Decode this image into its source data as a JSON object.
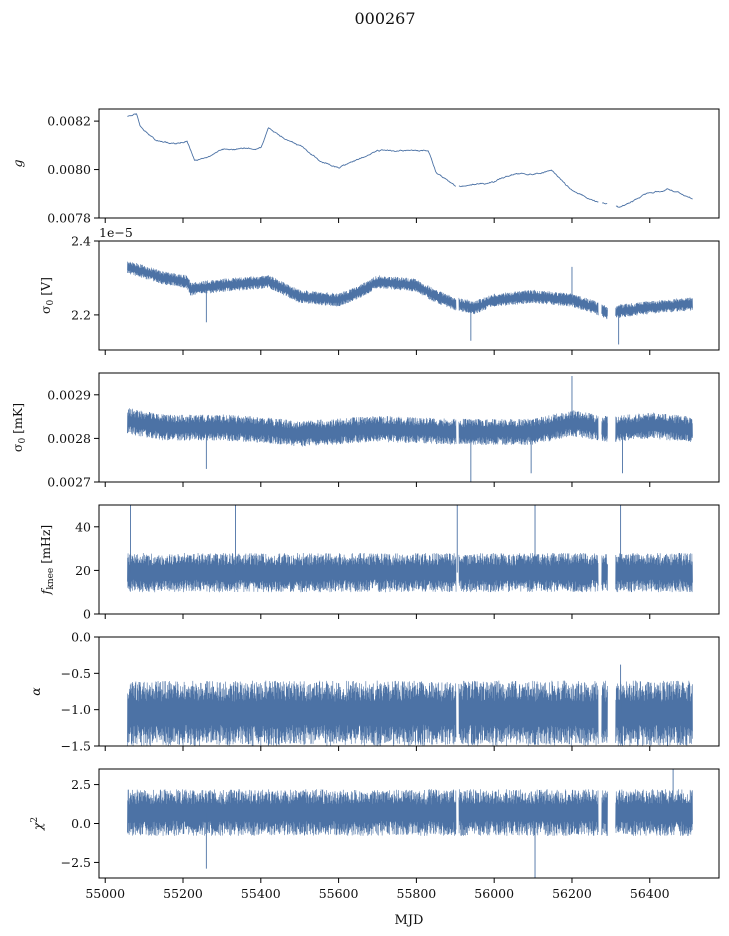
{
  "title": "000267",
  "xlabel": "MJD",
  "line_color": "#4c72a5",
  "chart_data": [
    {
      "type": "line",
      "ylabel": "g",
      "ylabel_sub": "",
      "ylabel_unit": "",
      "italic": true,
      "ylim": [
        0.0078,
        0.00825
      ],
      "yticks": [
        0.0078,
        0.008,
        0.0082
      ],
      "yticklabels": [
        "0.0078",
        "0.0080",
        "0.0082"
      ],
      "style": "line",
      "noise": 4e-06,
      "trend": [
        [
          55057,
          0.00822
        ],
        [
          55080,
          0.00823
        ],
        [
          55090,
          0.00818
        ],
        [
          55110,
          0.00815
        ],
        [
          55130,
          0.00812
        ],
        [
          55180,
          0.00811
        ],
        [
          55210,
          0.00812
        ],
        [
          55230,
          0.00804
        ],
        [
          55260,
          0.00804
        ],
        [
          55300,
          0.00808
        ],
        [
          55400,
          0.00809
        ],
        [
          55420,
          0.00817
        ],
        [
          55450,
          0.00814
        ],
        [
          55500,
          0.0081
        ],
        [
          55550,
          0.00804
        ],
        [
          55600,
          0.00801
        ],
        [
          55650,
          0.00804
        ],
        [
          55700,
          0.00808
        ],
        [
          55830,
          0.00808
        ],
        [
          55850,
          0.00799
        ],
        [
          55900,
          0.00793
        ],
        [
          56000,
          0.00795
        ],
        [
          56050,
          0.00798
        ],
        [
          56150,
          0.00799
        ],
        [
          56200,
          0.00791
        ],
        [
          56260,
          0.00787
        ],
        [
          56320,
          0.00784
        ],
        [
          56400,
          0.0079
        ],
        [
          56450,
          0.00792
        ],
        [
          56510,
          0.00788
        ]
      ],
      "spikes": []
    },
    {
      "type": "line",
      "ylabel": "σ",
      "ylabel_sub": "0",
      "ylabel_unit": " [V]",
      "italic": false,
      "ylim": [
        2.105,
        2.4
      ],
      "offset_text": "1e−5",
      "yticks": [
        2.2,
        2.4
      ],
      "yticklabels": [
        "2.2",
        "2.4"
      ],
      "style": "band",
      "noise": 0.018,
      "trend": [
        [
          55057,
          2.33
        ],
        [
          55150,
          2.3
        ],
        [
          55210,
          2.29
        ],
        [
          55220,
          2.27
        ],
        [
          55300,
          2.28
        ],
        [
          55420,
          2.29
        ],
        [
          55500,
          2.25
        ],
        [
          55600,
          2.24
        ],
        [
          55650,
          2.26
        ],
        [
          55700,
          2.29
        ],
        [
          55800,
          2.28
        ],
        [
          55850,
          2.25
        ],
        [
          55900,
          2.23
        ],
        [
          55950,
          2.22
        ],
        [
          56000,
          2.24
        ],
        [
          56100,
          2.25
        ],
        [
          56200,
          2.24
        ],
        [
          56260,
          2.22
        ],
        [
          56300,
          2.2
        ],
        [
          56320,
          2.21
        ],
        [
          56400,
          2.22
        ],
        [
          56510,
          2.23
        ]
      ],
      "spikes": [
        [
          56200,
          2.33
        ],
        [
          55940,
          2.13
        ],
        [
          56320,
          2.12
        ],
        [
          55260,
          2.18
        ]
      ]
    },
    {
      "type": "line",
      "ylabel": "σ",
      "ylabel_sub": "0",
      "ylabel_unit": " [mK]",
      "italic": false,
      "ylim": [
        0.0027,
        0.00295
      ],
      "yticks": [
        0.0027,
        0.0028,
        0.0029
      ],
      "yticklabels": [
        "0.0027",
        "0.0028",
        "0.0029"
      ],
      "style": "band",
      "noise": 3e-05,
      "trend": [
        [
          55057,
          0.00284
        ],
        [
          55150,
          0.002825
        ],
        [
          55300,
          0.002825
        ],
        [
          55400,
          0.00282
        ],
        [
          55500,
          0.00281
        ],
        [
          55700,
          0.002822
        ],
        [
          55900,
          0.002815
        ],
        [
          56100,
          0.002815
        ],
        [
          56200,
          0.002835
        ],
        [
          56300,
          0.00282
        ],
        [
          56400,
          0.00283
        ],
        [
          56510,
          0.00282
        ]
      ],
      "spikes": [
        [
          56200,
          0.002943
        ],
        [
          55940,
          0.0027
        ],
        [
          56095,
          0.00272
        ],
        [
          56330,
          0.00272
        ],
        [
          55260,
          0.00273
        ]
      ]
    },
    {
      "type": "line",
      "ylabel": "f",
      "ylabel_sub": "knee",
      "ylabel_unit": " [mHz]",
      "italic": true,
      "ylim": [
        0,
        50
      ],
      "yticks": [
        0,
        20,
        40
      ],
      "yticklabels": [
        "0",
        "20",
        "40"
      ],
      "style": "band",
      "noise": 9,
      "trend": [
        [
          55057,
          19
        ],
        [
          56510,
          19
        ]
      ],
      "spikes": [
        [
          55065,
          50
        ],
        [
          55335,
          50
        ],
        [
          55905,
          50
        ],
        [
          56105,
          50
        ],
        [
          56325,
          50
        ]
      ]
    },
    {
      "type": "line",
      "ylabel": "α",
      "ylabel_sub": "",
      "ylabel_unit": "",
      "italic": true,
      "ylim": [
        -1.5,
        0
      ],
      "yticks": [
        -1.5,
        -1.0,
        -0.5,
        0.0
      ],
      "yticklabels": [
        "−1.5",
        "−1.0",
        "−0.5",
        "0.0"
      ],
      "style": "band",
      "noise": 0.45,
      "trend": [
        [
          55057,
          -1.05
        ],
        [
          56510,
          -1.05
        ]
      ],
      "spikes": [
        [
          56325,
          -0.38
        ]
      ]
    },
    {
      "type": "line",
      "ylabel": "χ",
      "ylabel_sub": "",
      "ylabel_sup": "2",
      "ylabel_unit": "",
      "italic": true,
      "ylim": [
        -3.5,
        3.5
      ],
      "yticks": [
        -2.5,
        0.0,
        2.5
      ],
      "yticklabels": [
        "−2.5",
        "0.0",
        "2.5"
      ],
      "style": "band",
      "noise": 1.5,
      "trend": [
        [
          55057,
          0.7
        ],
        [
          56510,
          0.7
        ]
      ],
      "spikes": [
        [
          56105,
          -3.5
        ],
        [
          55260,
          -2.9
        ],
        [
          56460,
          3.5
        ]
      ]
    }
  ],
  "xlim": [
    54984,
    56578
  ],
  "xticks": [
    55000,
    55200,
    55400,
    55600,
    55800,
    56000,
    56200,
    56400
  ],
  "xticklabels": [
    "55000",
    "55200",
    "55400",
    "55600",
    "55800",
    "56000",
    "56200",
    "56400"
  ],
  "data_range": [
    55057,
    56510
  ],
  "gaps": [
    [
      55902,
      55909
    ],
    [
      56268,
      56276
    ],
    [
      56292,
      56312
    ]
  ]
}
